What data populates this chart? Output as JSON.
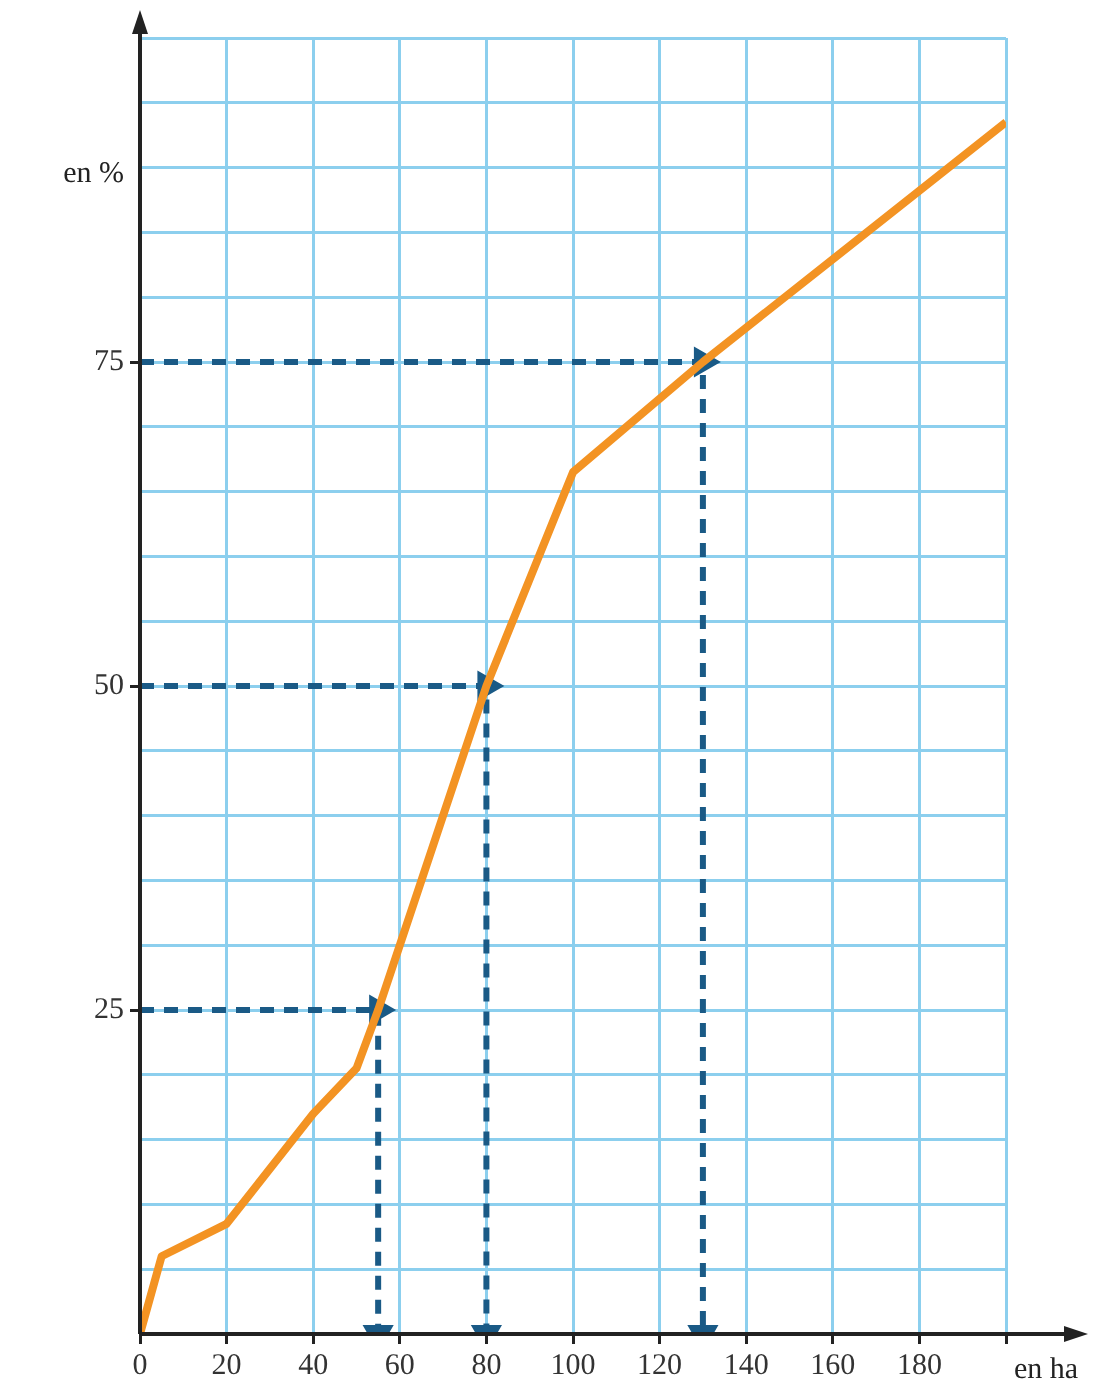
{
  "chart_data": {
    "type": "line",
    "xlabel": "en ha",
    "ylabel": "en %",
    "xlim": [
      0,
      200
    ],
    "ylim": [
      0,
      100
    ],
    "xticks": [
      0,
      20,
      40,
      60,
      80,
      100,
      120,
      140,
      160,
      180,
      {
        "value": 200,
        "label": null
      }
    ],
    "yticks": [
      {
        "value": 0,
        "label": null
      },
      {
        "value": 5,
        "label": null
      },
      {
        "value": 10,
        "label": null
      },
      {
        "value": 15,
        "label": null
      },
      {
        "value": 20,
        "label": null
      },
      25,
      {
        "value": 30,
        "label": null
      },
      {
        "value": 35,
        "label": null
      },
      {
        "value": 40,
        "label": null
      },
      {
        "value": 45,
        "label": null
      },
      50,
      {
        "value": 55,
        "label": null
      },
      {
        "value": 60,
        "label": null
      },
      {
        "value": 65,
        "label": null
      },
      {
        "value": 70,
        "label": null
      },
      75,
      {
        "value": 80,
        "label": null
      },
      {
        "value": 85,
        "label": null
      },
      {
        "value": 90,
        "label": null
      },
      {
        "value": 95,
        "label": null
      },
      {
        "value": 100,
        "label": null
      }
    ],
    "grid": true,
    "legend": false,
    "marker": "none",
    "series": [
      {
        "color": "#f39323",
        "x": [
          0,
          5,
          20,
          40,
          50,
          55,
          80,
          100,
          130,
          200
        ],
        "values": [
          0,
          6,
          8.5,
          17,
          20.5,
          25,
          50,
          66.5,
          75,
          93.5
        ]
      },
      {
        "color": "#1a5a86",
        "line_style": "dashed",
        "marker": "triangle",
        "x": [
          0,
          55,
          55
        ],
        "values": [
          25,
          25,
          0
        ]
      },
      {
        "color": "#1a5a86",
        "line_style": "dashed",
        "marker": "triangle",
        "x": [
          0,
          80,
          80
        ],
        "values": [
          50,
          50,
          0
        ]
      },
      {
        "color": "#1a5a86",
        "line_style": "dashed",
        "marker": "triangle",
        "x": [
          0,
          130,
          130
        ],
        "values": [
          75,
          75,
          0
        ]
      }
    ]
  }
}
